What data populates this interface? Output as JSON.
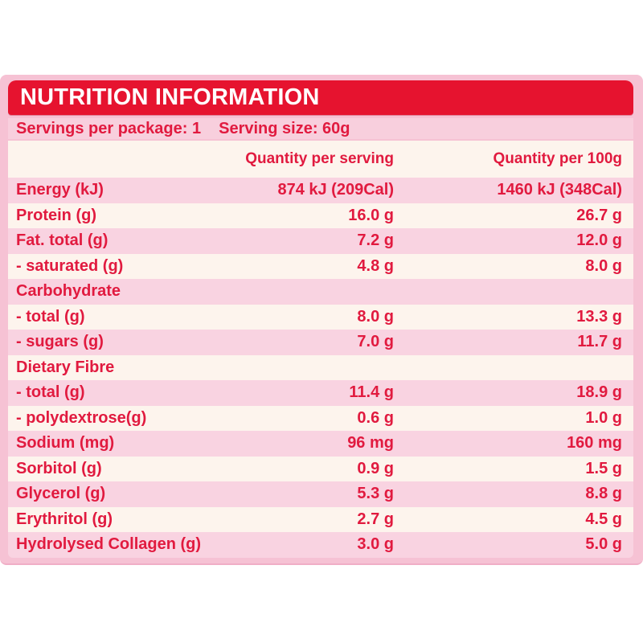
{
  "title": "NUTRITION INFORMATION",
  "serving_info": {
    "servings_per_package": "Servings per package: 1",
    "serving_size": "Serving size: 60g"
  },
  "columns": {
    "per_serving": "Quantity per serving",
    "per_100g": "Quantity per 100g"
  },
  "table": {
    "rows": [
      {
        "label": "Energy (kJ)",
        "per_serving": "874 kJ (209Cal)",
        "per_100g": "1460 kJ (348Cal)"
      },
      {
        "label": "Protein (g)",
        "per_serving": "16.0 g",
        "per_100g": "26.7 g"
      },
      {
        "label": "Fat. total (g)",
        "per_serving": "7.2 g",
        "per_100g": "12.0 g"
      },
      {
        "label": "- saturated (g)",
        "per_serving": "4.8 g",
        "per_100g": "8.0 g"
      },
      {
        "label": "Carbohydrate",
        "per_serving": "",
        "per_100g": ""
      },
      {
        "label": "- total (g)",
        "per_serving": "8.0 g",
        "per_100g": "13.3 g"
      },
      {
        "label": "- sugars (g)",
        "per_serving": "7.0 g",
        "per_100g": "11.7 g"
      },
      {
        "label": "Dietary Fibre",
        "per_serving": "",
        "per_100g": ""
      },
      {
        "label": "- total (g)",
        "per_serving": "11.4 g",
        "per_100g": "18.9 g"
      },
      {
        "label": "- polydextrose(g)",
        "per_serving": "0.6 g",
        "per_100g": "1.0 g"
      },
      {
        "label": "Sodium (mg)",
        "per_serving": "96 mg",
        "per_100g": "160 mg"
      },
      {
        "label": "Sorbitol (g)",
        "per_serving": "0.9 g",
        "per_100g": "1.5 g"
      },
      {
        "label": "Glycerol (g)",
        "per_serving": "5.3 g",
        "per_100g": "8.8 g"
      },
      {
        "label": "Erythritol (g)",
        "per_serving": "2.7 g",
        "per_100g": "4.5 g"
      },
      {
        "label": "Hydrolysed Collagen (g)",
        "per_serving": "3.0 g",
        "per_100g": "5.0 g"
      }
    ]
  },
  "colors": {
    "header_red": "#e6132f",
    "text_red": "#e11a3f",
    "row_pink": "#f9d3e1",
    "row_cream": "#fdf4ed",
    "panel_pink": "#f6c2d4",
    "servings_pink": "#f8cfdd"
  }
}
